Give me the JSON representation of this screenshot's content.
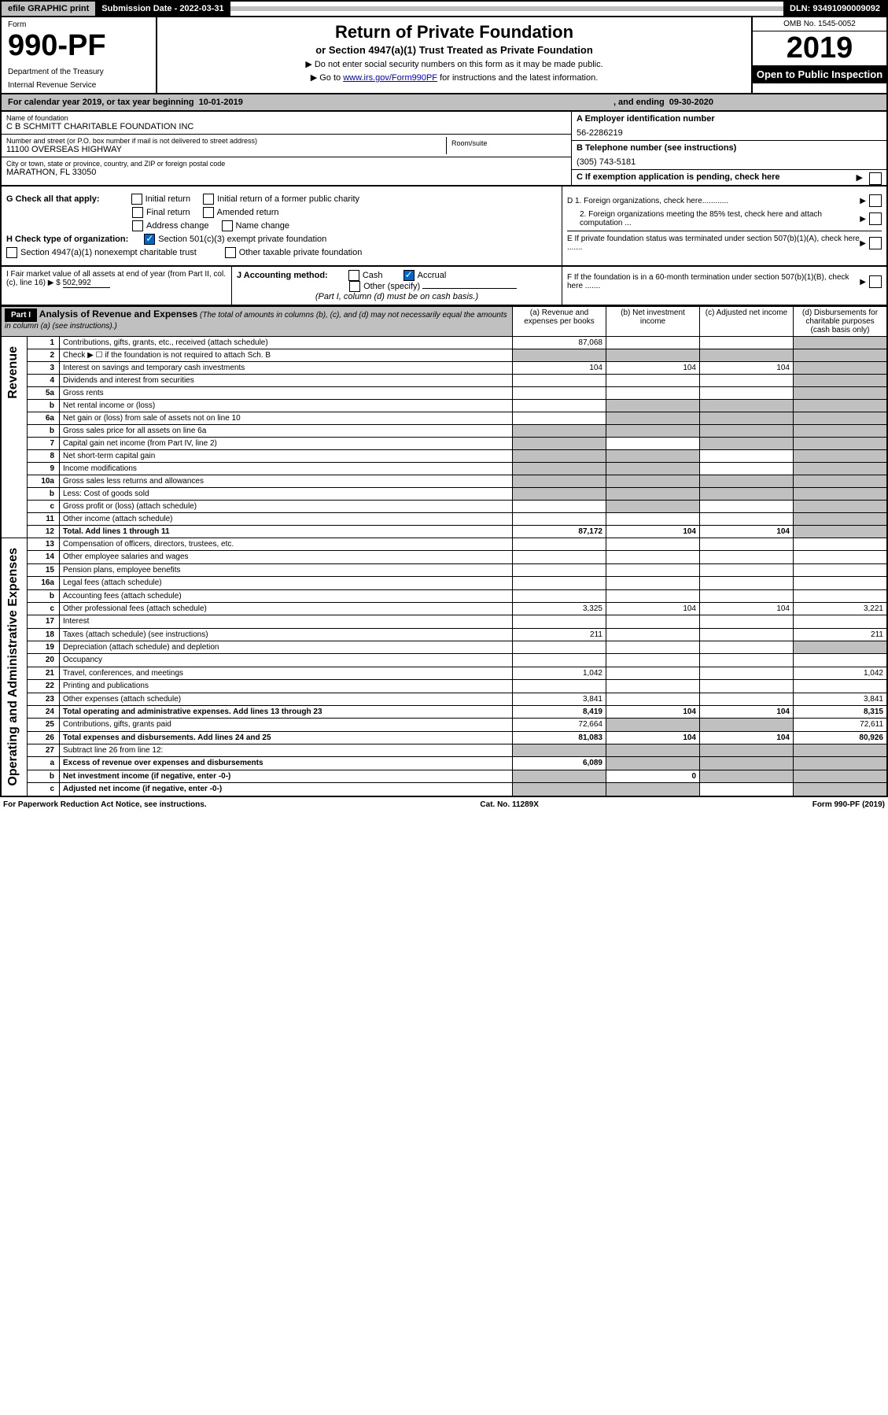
{
  "top": {
    "efile": "efile GRAPHIC print",
    "sub_label": "Submission Date - 2022-03-31",
    "dln": "DLN: 93491090009092"
  },
  "header": {
    "form_word": "Form",
    "form_num": "990-PF",
    "dept": "Department of the Treasury",
    "irs": "Internal Revenue Service",
    "title": "Return of Private Foundation",
    "subtitle": "or Section 4947(a)(1) Trust Treated as Private Foundation",
    "instr1": "▶ Do not enter social security numbers on this form as it may be made public.",
    "instr2_pre": "▶ Go to ",
    "instr2_link": "www.irs.gov/Form990PF",
    "instr2_post": " for instructions and the latest information.",
    "omb": "OMB No. 1545-0052",
    "year": "2019",
    "open": "Open to Public Inspection"
  },
  "cal": {
    "prefix": "For calendar year 2019, or tax year beginning",
    "begin": "10-01-2019",
    "mid": ", and ending",
    "end": "09-30-2020"
  },
  "entity": {
    "name_label": "Name of foundation",
    "name": "C B SCHMITT CHARITABLE FOUNDATION INC",
    "street_label": "Number and street (or P.O. box number if mail is not delivered to street address)",
    "street": "11100 OVERSEAS HIGHWAY",
    "room_label": "Room/suite",
    "city_label": "City or town, state or province, country, and ZIP or foreign postal code",
    "city": "MARATHON, FL  33050",
    "ein_label": "A Employer identification number",
    "ein": "56-2286219",
    "phone_label": "B Telephone number (see instructions)",
    "phone": "(305) 743-5181",
    "c_label": "C If exemption application is pending, check here"
  },
  "checks": {
    "g_label": "G Check all that apply:",
    "g": [
      "Initial return",
      "Initial return of a former public charity",
      "Final return",
      "Amended return",
      "Address change",
      "Name change"
    ],
    "h_label": "H Check type of organization:",
    "h1": "Section 501(c)(3) exempt private foundation",
    "h2": "Section 4947(a)(1) nonexempt charitable trust",
    "h3": "Other taxable private foundation",
    "d1": "D 1. Foreign organizations, check here............",
    "d2": "2. Foreign organizations meeting the 85% test, check here and attach computation ...",
    "e": "E  If private foundation status was terminated under section 507(b)(1)(A), check here .......",
    "f": "F  If the foundation is in a 60-month termination under section 507(b)(1)(B), check here ......."
  },
  "acct": {
    "i_label": "I Fair market value of all assets at end of year (from Part II, col. (c), line 16) ▶ $",
    "i_val": "502,992",
    "j_label": "J Accounting method:",
    "cash": "Cash",
    "accrual": "Accrual",
    "other": "Other (specify)",
    "note": "(Part I, column (d) must be on cash basis.)"
  },
  "part1": {
    "label": "Part I",
    "title": "Analysis of Revenue and Expenses",
    "title_note": "(The total of amounts in columns (b), (c), and (d) may not necessarily equal the amounts in column (a) (see instructions).)",
    "col_a": "(a) Revenue and expenses per books",
    "col_b": "(b) Net investment income",
    "col_c": "(c) Adjusted net income",
    "col_d": "(d) Disbursements for charitable purposes (cash basis only)"
  },
  "side": {
    "revenue": "Revenue",
    "expenses": "Operating and Administrative Expenses"
  },
  "rows": [
    {
      "n": "1",
      "desc": "Contributions, gifts, grants, etc., received (attach schedule)",
      "a": "87,068",
      "b": "",
      "c": "",
      "d": "",
      "d_shade": true
    },
    {
      "n": "2",
      "desc": "Check ▶ ☐ if the foundation is not required to attach Sch. B",
      "a": "",
      "b": "",
      "c": "",
      "d": "",
      "all_shade": true
    },
    {
      "n": "3",
      "desc": "Interest on savings and temporary cash investments",
      "a": "104",
      "b": "104",
      "c": "104",
      "d": "",
      "d_shade": true
    },
    {
      "n": "4",
      "desc": "Dividends and interest from securities",
      "a": "",
      "b": "",
      "c": "",
      "d": "",
      "d_shade": true
    },
    {
      "n": "5a",
      "desc": "Gross rents",
      "a": "",
      "b": "",
      "c": "",
      "d": "",
      "d_shade": true
    },
    {
      "n": "b",
      "desc": "Net rental income or (loss)",
      "a": "",
      "b": "",
      "c": "",
      "d": "",
      "bcd_shade": true
    },
    {
      "n": "6a",
      "desc": "Net gain or (loss) from sale of assets not on line 10",
      "a": "",
      "b": "",
      "c": "",
      "d": "",
      "bcd_shade": true
    },
    {
      "n": "b",
      "desc": "Gross sales price for all assets on line 6a",
      "a": "",
      "b": "",
      "c": "",
      "d": "",
      "all_shade": true
    },
    {
      "n": "7",
      "desc": "Capital gain net income (from Part IV, line 2)",
      "a": "",
      "b": "",
      "c": "",
      "d": "",
      "a_shade": true,
      "cd_shade": true
    },
    {
      "n": "8",
      "desc": "Net short-term capital gain",
      "a": "",
      "b": "",
      "c": "",
      "d": "",
      "ab_shade": true,
      "d_shade": true
    },
    {
      "n": "9",
      "desc": "Income modifications",
      "a": "",
      "b": "",
      "c": "",
      "d": "",
      "ab_shade": true,
      "d_shade": true
    },
    {
      "n": "10a",
      "desc": "Gross sales less returns and allowances",
      "a": "",
      "b": "",
      "c": "",
      "d": "",
      "all_shade": true
    },
    {
      "n": "b",
      "desc": "Less: Cost of goods sold",
      "a": "",
      "b": "",
      "c": "",
      "d": "",
      "all_shade": true
    },
    {
      "n": "c",
      "desc": "Gross profit or (loss) (attach schedule)",
      "a": "",
      "b": "",
      "c": "",
      "d": "",
      "b_shade": true,
      "d_shade": true
    },
    {
      "n": "11",
      "desc": "Other income (attach schedule)",
      "a": "",
      "b": "",
      "c": "",
      "d": "",
      "d_shade": true
    },
    {
      "n": "12",
      "desc": "Total. Add lines 1 through 11",
      "a": "87,172",
      "b": "104",
      "c": "104",
      "d": "",
      "d_shade": true,
      "bold": true
    },
    {
      "n": "13",
      "desc": "Compensation of officers, directors, trustees, etc.",
      "a": "",
      "b": "",
      "c": "",
      "d": ""
    },
    {
      "n": "14",
      "desc": "Other employee salaries and wages",
      "a": "",
      "b": "",
      "c": "",
      "d": ""
    },
    {
      "n": "15",
      "desc": "Pension plans, employee benefits",
      "a": "",
      "b": "",
      "c": "",
      "d": ""
    },
    {
      "n": "16a",
      "desc": "Legal fees (attach schedule)",
      "a": "",
      "b": "",
      "c": "",
      "d": ""
    },
    {
      "n": "b",
      "desc": "Accounting fees (attach schedule)",
      "a": "",
      "b": "",
      "c": "",
      "d": ""
    },
    {
      "n": "c",
      "desc": "Other professional fees (attach schedule)",
      "a": "3,325",
      "b": "104",
      "c": "104",
      "d": "3,221"
    },
    {
      "n": "17",
      "desc": "Interest",
      "a": "",
      "b": "",
      "c": "",
      "d": ""
    },
    {
      "n": "18",
      "desc": "Taxes (attach schedule) (see instructions)",
      "a": "211",
      "b": "",
      "c": "",
      "d": "211"
    },
    {
      "n": "19",
      "desc": "Depreciation (attach schedule) and depletion",
      "a": "",
      "b": "",
      "c": "",
      "d": "",
      "d_shade": true
    },
    {
      "n": "20",
      "desc": "Occupancy",
      "a": "",
      "b": "",
      "c": "",
      "d": ""
    },
    {
      "n": "21",
      "desc": "Travel, conferences, and meetings",
      "a": "1,042",
      "b": "",
      "c": "",
      "d": "1,042"
    },
    {
      "n": "22",
      "desc": "Printing and publications",
      "a": "",
      "b": "",
      "c": "",
      "d": ""
    },
    {
      "n": "23",
      "desc": "Other expenses (attach schedule)",
      "a": "3,841",
      "b": "",
      "c": "",
      "d": "3,841"
    },
    {
      "n": "24",
      "desc": "Total operating and administrative expenses. Add lines 13 through 23",
      "a": "8,419",
      "b": "104",
      "c": "104",
      "d": "8,315",
      "bold": true
    },
    {
      "n": "25",
      "desc": "Contributions, gifts, grants paid",
      "a": "72,664",
      "b": "",
      "c": "",
      "d": "72,611",
      "bc_shade": true
    },
    {
      "n": "26",
      "desc": "Total expenses and disbursements. Add lines 24 and 25",
      "a": "81,083",
      "b": "104",
      "c": "104",
      "d": "80,926",
      "bold": true
    },
    {
      "n": "27",
      "desc": "Subtract line 26 from line 12:",
      "a": "",
      "b": "",
      "c": "",
      "d": "",
      "all_shade": true
    },
    {
      "n": "a",
      "desc": "Excess of revenue over expenses and disbursements",
      "a": "6,089",
      "b": "",
      "c": "",
      "d": "",
      "bold": true,
      "bcd_shade": true
    },
    {
      "n": "b",
      "desc": "Net investment income (if negative, enter -0-)",
      "a": "",
      "b": "0",
      "c": "",
      "d": "",
      "bold": true,
      "a_shade": true,
      "cd_shade": true
    },
    {
      "n": "c",
      "desc": "Adjusted net income (if negative, enter -0-)",
      "a": "",
      "b": "",
      "c": "",
      "d": "",
      "bold": true,
      "ab_shade": true,
      "d_shade": true
    }
  ],
  "footer": {
    "left": "For Paperwork Reduction Act Notice, see instructions.",
    "mid": "Cat. No. 11289X",
    "right": "Form 990-PF (2019)"
  }
}
